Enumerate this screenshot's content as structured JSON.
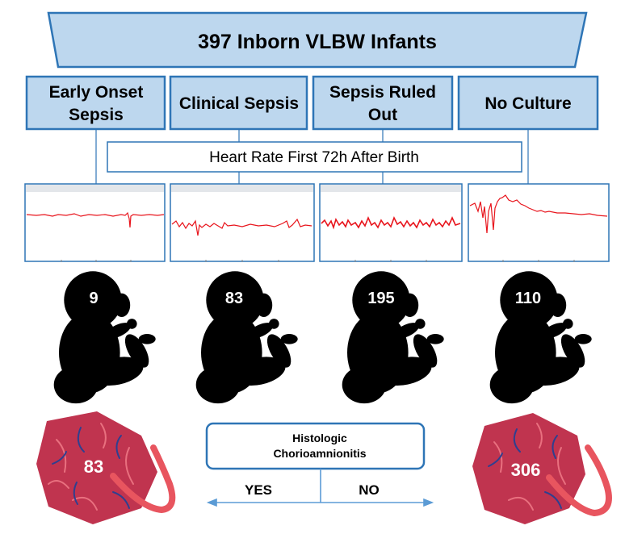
{
  "title": "397 Inborn VLBW Infants",
  "categories": [
    {
      "lines": [
        "Early Onset",
        "Sepsis"
      ],
      "count": "9"
    },
    {
      "lines": [
        "Clinical Sepsis"
      ],
      "count": "83"
    },
    {
      "lines": [
        "Sepsis Ruled",
        "Out"
      ],
      "count": "195"
    },
    {
      "lines": [
        "No Culture"
      ],
      "count": "110"
    }
  ],
  "heart_rate_label": "Heart Rate First 72h After Birth",
  "histologic": {
    "lines": [
      "Histologic",
      "Chorioamnionitis"
    ],
    "yes_label": "YES",
    "no_label": "NO",
    "yes_count": "83",
    "no_count": "306"
  },
  "colors": {
    "box_fill": "#bdd7ee",
    "box_stroke": "#2e75b6",
    "trace": "#e8141c",
    "placenta": "#c0344f",
    "placenta_light": "#e9707f",
    "vessel_dark": "#2f3f8f",
    "cord": "#e8555f"
  }
}
